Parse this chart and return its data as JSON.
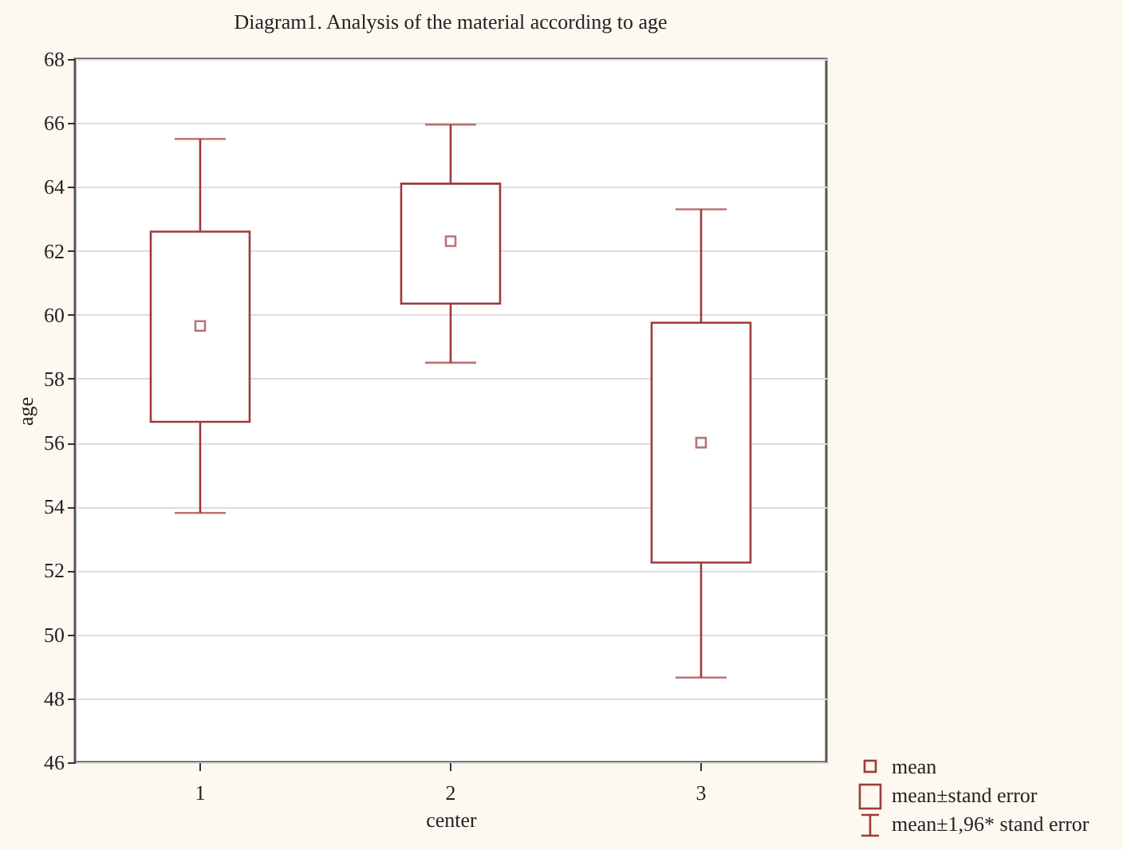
{
  "chart_data": {
    "type": "box",
    "title": "Diagram1. Analysis of the material according to age",
    "xlabel": "center",
    "ylabel": "age",
    "categories": [
      "1",
      "2",
      "3"
    ],
    "boxes": [
      {
        "low": 53.8,
        "q1": 56.65,
        "q3": 62.6,
        "high": 65.5,
        "mean": 59.65
      },
      {
        "low": 58.5,
        "q1": 60.35,
        "q3": 64.1,
        "high": 65.95,
        "mean": 62.3
      },
      {
        "low": 48.65,
        "q1": 52.25,
        "q3": 59.75,
        "high": 63.3,
        "mean": 56.0
      }
    ],
    "color": "#9e3a3a",
    "ylim": [
      46,
      68
    ],
    "yticks": [
      46,
      48,
      50,
      52,
      54,
      56,
      58,
      60,
      62,
      64,
      66,
      68
    ],
    "grid": "y",
    "annotations": [
      "mean",
      "mean±stand error",
      "mean±1,96* stand error"
    ]
  }
}
